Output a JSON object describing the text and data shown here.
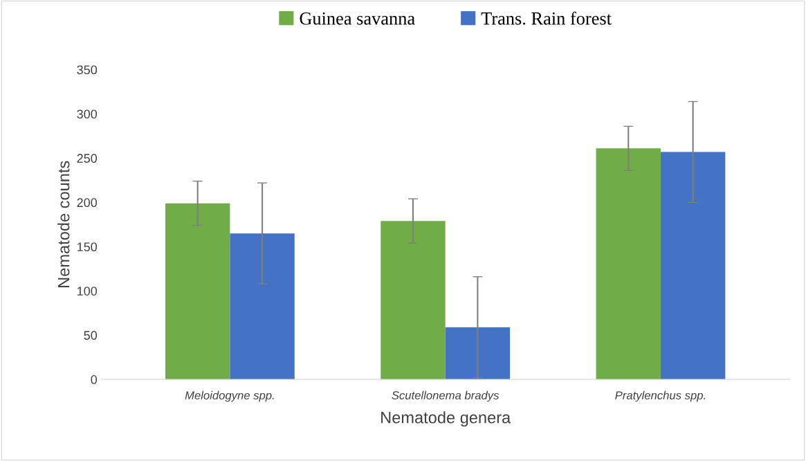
{
  "chart_data": {
    "type": "bar",
    "xlabel": "Nematode genera",
    "ylabel": "Nematode counts",
    "categories": [
      "Meloidogyne spp.",
      "Scutellonema bradys",
      "Pratylenchus spp."
    ],
    "series": [
      {
        "name": "Guinea savanna",
        "color": "#70ad47",
        "values": [
          199,
          179,
          261
        ],
        "errors": [
          25,
          25,
          25
        ]
      },
      {
        "name": "Trans. Rain forest",
        "color": "#4472c4",
        "values": [
          165,
          59,
          257
        ],
        "errors": [
          57,
          57,
          57
        ]
      }
    ],
    "ylim": [
      0,
      350
    ],
    "yticks": [
      0,
      50,
      100,
      150,
      200,
      250,
      300,
      350
    ],
    "grid": false,
    "legend": "top"
  }
}
